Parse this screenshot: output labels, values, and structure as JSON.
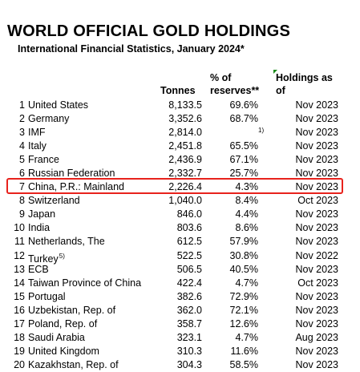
{
  "header": {
    "title": "WORLD OFFICIAL GOLD HOLDINGS",
    "subtitle": "International Financial Statistics, January 2024*"
  },
  "columns": {
    "tonnes": "Tonnes",
    "pct_line1": "% of",
    "pct_line2": "reserves**",
    "holdings_line1": "Holdings as",
    "holdings_line2": "of"
  },
  "rows": [
    {
      "rank": "1",
      "name": "United States",
      "tonnes": "8,133.5",
      "pct": "69.6%",
      "date": "Nov 2023"
    },
    {
      "rank": "2",
      "name": "Germany",
      "tonnes": "3,352.6",
      "pct": "68.7%",
      "date": "Nov 2023"
    },
    {
      "rank": "3",
      "name": "IMF",
      "tonnes": "2,814.0",
      "pct": "",
      "note": "1)",
      "date": "Nov 2023"
    },
    {
      "rank": "4",
      "name": "Italy",
      "tonnes": "2,451.8",
      "pct": "65.5%",
      "date": "Nov 2023"
    },
    {
      "rank": "5",
      "name": "France",
      "tonnes": "2,436.9",
      "pct": "67.1%",
      "date": "Nov 2023"
    },
    {
      "rank": "6",
      "name": "Russian Federation",
      "tonnes": "2,332.7",
      "pct": "25.7%",
      "date": "Nov 2023"
    },
    {
      "rank": "7",
      "name": "China, P.R.: Mainland",
      "tonnes": "2,226.4",
      "pct": "4.3%",
      "date": "Nov 2023"
    },
    {
      "rank": "8",
      "name": "Switzerland",
      "tonnes": "1,040.0",
      "pct": "8.4%",
      "date": "Oct 2023"
    },
    {
      "rank": "9",
      "name": "Japan",
      "tonnes": "846.0",
      "pct": "4.4%",
      "date": "Nov 2023"
    },
    {
      "rank": "10",
      "name": "India",
      "tonnes": "803.6",
      "pct": "8.6%",
      "date": "Nov 2023"
    },
    {
      "rank": "11",
      "name": "Netherlands, The",
      "tonnes": "612.5",
      "pct": "57.9%",
      "date": "Nov 2023"
    },
    {
      "rank": "12",
      "name": "Turkey",
      "name_note": "5)",
      "tonnes": "522.5",
      "pct": "30.8%",
      "date": "Nov 2022"
    },
    {
      "rank": "13",
      "name": "ECB",
      "tonnes": "506.5",
      "pct": "40.5%",
      "date": "Nov 2023"
    },
    {
      "rank": "14",
      "name": "Taiwan Province of China",
      "tonnes": "422.4",
      "pct": "4.7%",
      "date": "Oct 2023"
    },
    {
      "rank": "15",
      "name": "Portugal",
      "tonnes": "382.6",
      "pct": "72.9%",
      "date": "Nov 2023"
    },
    {
      "rank": "16",
      "name": "Uzbekistan, Rep. of",
      "tonnes": "362.0",
      "pct": "72.1%",
      "date": "Nov 2023"
    },
    {
      "rank": "17",
      "name": "Poland, Rep. of",
      "tonnes": "358.7",
      "pct": "12.6%",
      "date": "Nov 2023"
    },
    {
      "rank": "18",
      "name": "Saudi Arabia",
      "tonnes": "323.1",
      "pct": "4.7%",
      "date": "Aug 2023"
    },
    {
      "rank": "19",
      "name": "United Kingdom",
      "tonnes": "310.3",
      "pct": "11.6%",
      "date": "Nov 2023"
    },
    {
      "rank": "20",
      "name": "Kazakhstan, Rep. of",
      "tonnes": "304.3",
      "pct": "58.5%",
      "date": "Nov 2023"
    }
  ],
  "highlight": {
    "row_rank": "7",
    "color": "#e8221c"
  },
  "colors": {
    "comment_marker": "#1a8a1a"
  }
}
